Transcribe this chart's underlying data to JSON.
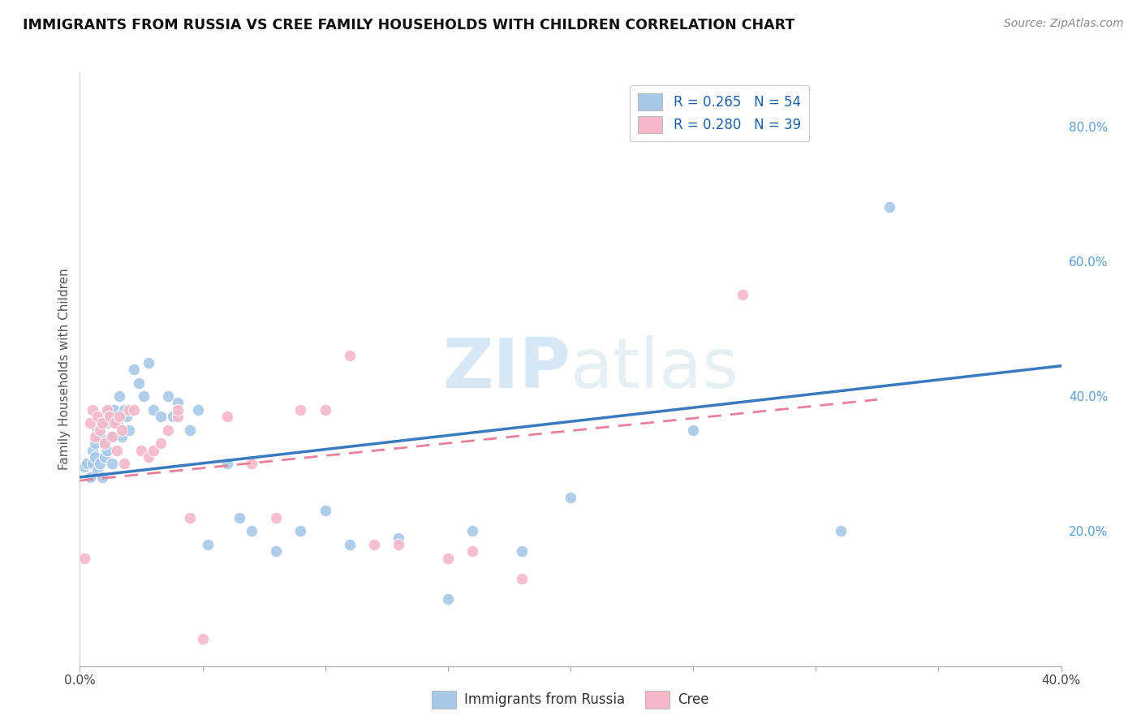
{
  "title": "IMMIGRANTS FROM RUSSIA VS CREE FAMILY HOUSEHOLDS WITH CHILDREN CORRELATION CHART",
  "source": "Source: ZipAtlas.com",
  "ylabel": "Family Households with Children",
  "ytick_labels": [
    "20.0%",
    "40.0%",
    "60.0%",
    "80.0%"
  ],
  "ytick_values": [
    0.2,
    0.4,
    0.6,
    0.8
  ],
  "xlim": [
    0.0,
    0.4
  ],
  "ylim": [
    0.0,
    0.88
  ],
  "legend1_label": "R = 0.265   N = 54",
  "legend2_label": "R = 0.280   N = 39",
  "legend_bottom1": "Immigrants from Russia",
  "legend_bottom2": "Cree",
  "blue_color": "#a8c8e8",
  "pink_color": "#f4b8c8",
  "line_blue": "#3a7abf",
  "line_pink": "#e8809a",
  "blue_scatter_x": [
    0.002,
    0.003,
    0.004,
    0.005,
    0.005,
    0.006,
    0.006,
    0.007,
    0.007,
    0.008,
    0.008,
    0.009,
    0.009,
    0.01,
    0.01,
    0.011,
    0.011,
    0.012,
    0.013,
    0.013,
    0.014,
    0.015,
    0.016,
    0.017,
    0.018,
    0.019,
    0.02,
    0.022,
    0.024,
    0.026,
    0.028,
    0.03,
    0.033,
    0.036,
    0.038,
    0.04,
    0.045,
    0.048,
    0.052,
    0.06,
    0.065,
    0.07,
    0.08,
    0.09,
    0.1,
    0.11,
    0.13,
    0.15,
    0.16,
    0.18,
    0.2,
    0.25,
    0.31,
    0.33
  ],
  "blue_scatter_y": [
    0.295,
    0.3,
    0.28,
    0.32,
    0.3,
    0.33,
    0.31,
    0.35,
    0.29,
    0.34,
    0.3,
    0.36,
    0.28,
    0.33,
    0.31,
    0.36,
    0.32,
    0.38,
    0.34,
    0.3,
    0.38,
    0.36,
    0.4,
    0.34,
    0.38,
    0.37,
    0.35,
    0.44,
    0.42,
    0.4,
    0.45,
    0.38,
    0.37,
    0.4,
    0.37,
    0.39,
    0.35,
    0.38,
    0.18,
    0.3,
    0.22,
    0.2,
    0.17,
    0.2,
    0.23,
    0.18,
    0.19,
    0.1,
    0.2,
    0.17,
    0.25,
    0.35,
    0.2,
    0.68
  ],
  "pink_scatter_x": [
    0.002,
    0.004,
    0.005,
    0.006,
    0.007,
    0.008,
    0.009,
    0.01,
    0.011,
    0.012,
    0.013,
    0.014,
    0.015,
    0.016,
    0.017,
    0.018,
    0.02,
    0.022,
    0.025,
    0.028,
    0.03,
    0.033,
    0.036,
    0.04,
    0.045,
    0.05,
    0.06,
    0.07,
    0.08,
    0.09,
    0.1,
    0.11,
    0.12,
    0.13,
    0.15,
    0.16,
    0.18,
    0.04,
    0.27
  ],
  "pink_scatter_y": [
    0.16,
    0.36,
    0.38,
    0.34,
    0.37,
    0.35,
    0.36,
    0.33,
    0.38,
    0.37,
    0.34,
    0.36,
    0.32,
    0.37,
    0.35,
    0.3,
    0.38,
    0.38,
    0.32,
    0.31,
    0.32,
    0.33,
    0.35,
    0.37,
    0.22,
    0.04,
    0.37,
    0.3,
    0.22,
    0.38,
    0.38,
    0.46,
    0.18,
    0.18,
    0.16,
    0.17,
    0.13,
    0.38,
    0.55
  ],
  "blue_line_x": [
    0.0,
    0.4
  ],
  "blue_line_y": [
    0.28,
    0.445
  ],
  "pink_line_x": [
    0.0,
    0.325
  ],
  "pink_line_y": [
    0.275,
    0.395
  ]
}
